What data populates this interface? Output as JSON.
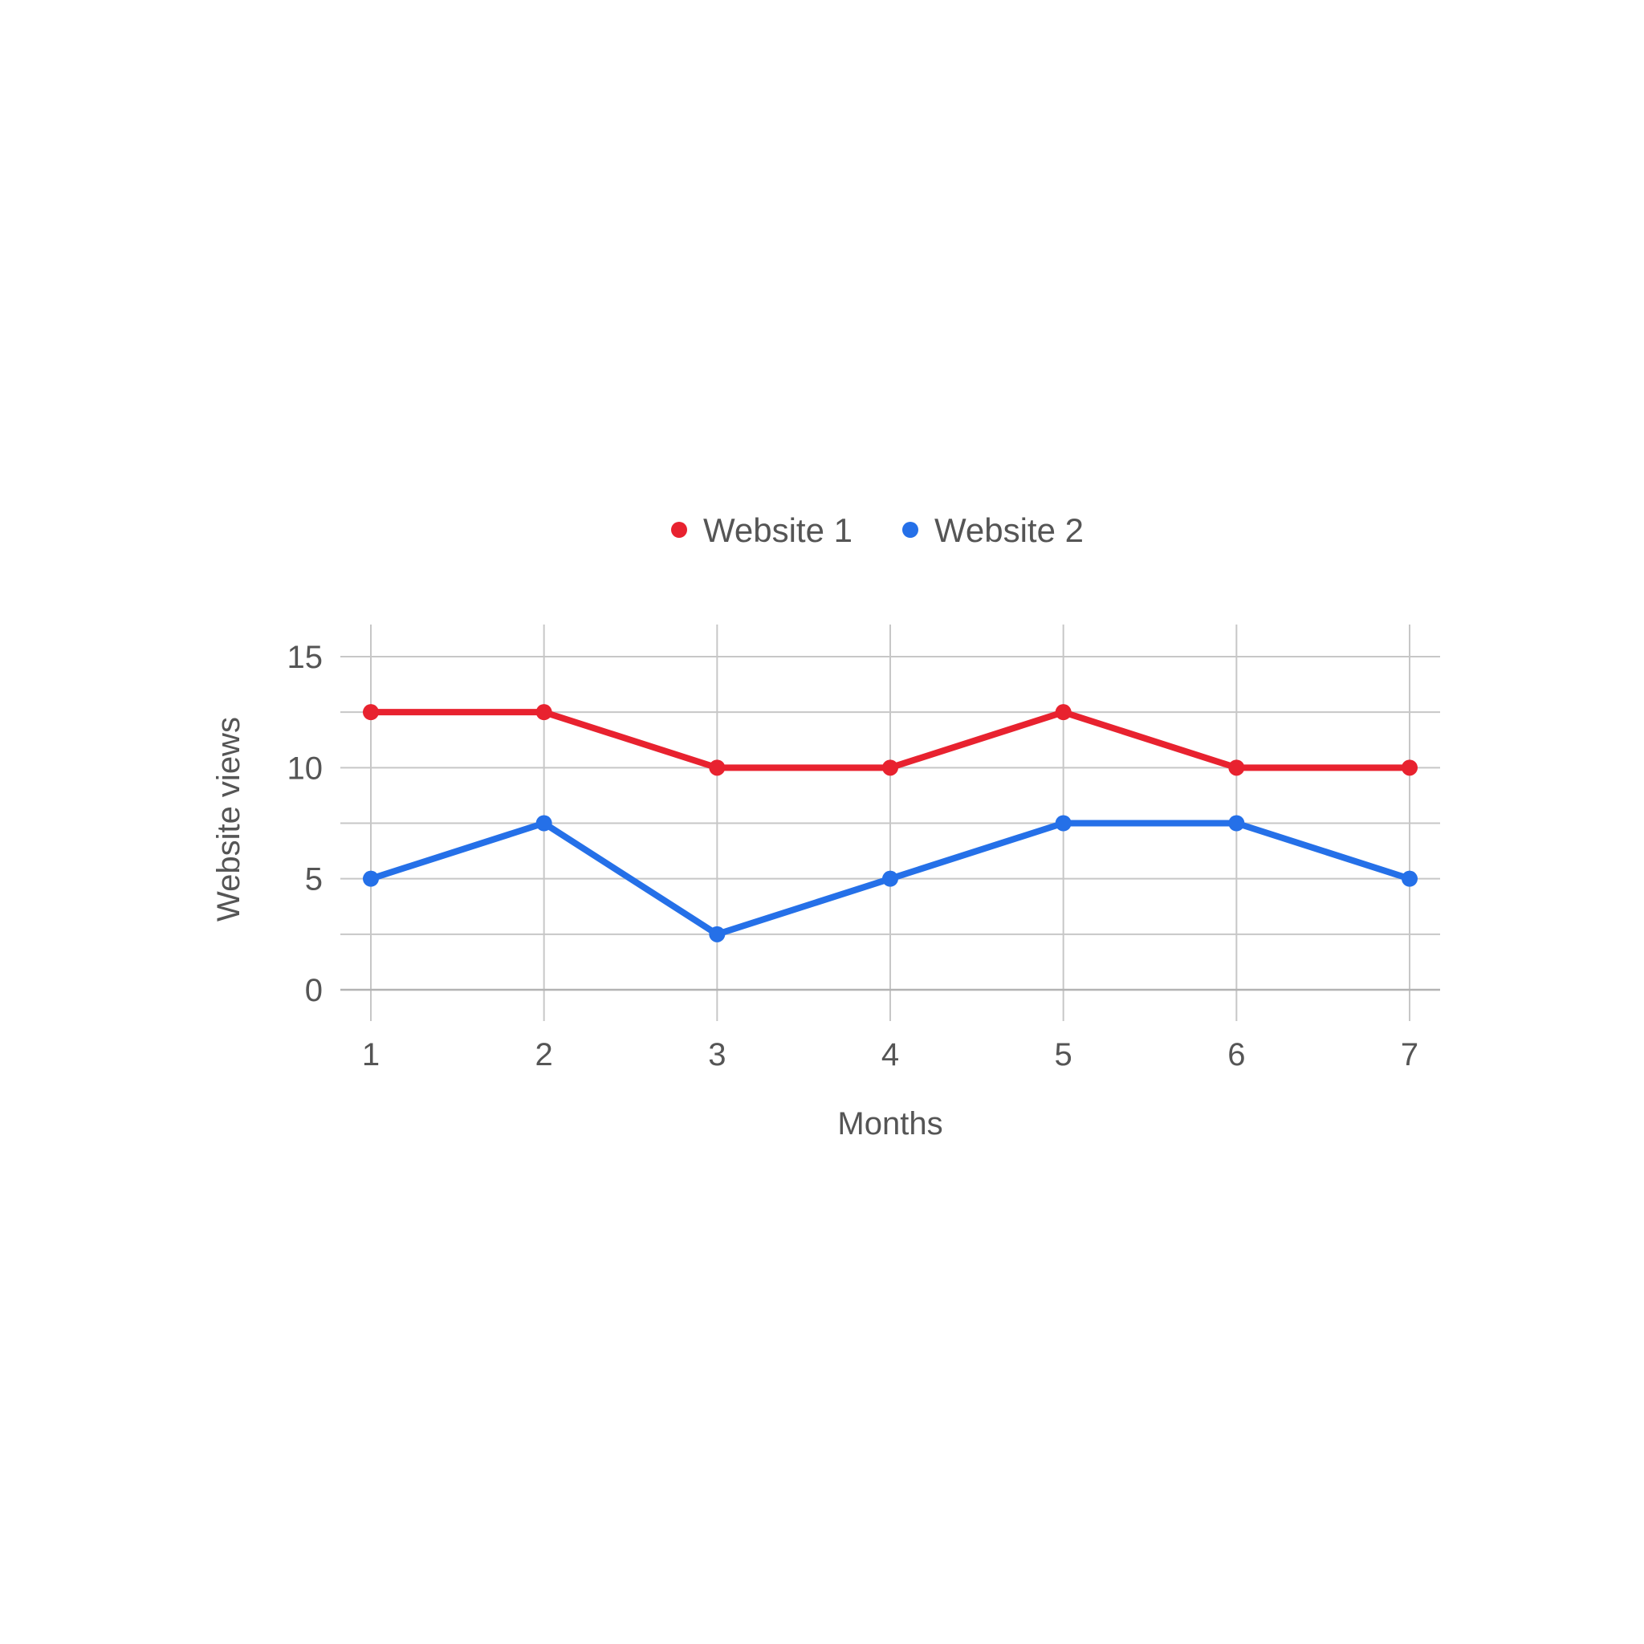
{
  "chart_data": {
    "type": "line",
    "title": "",
    "xlabel": "Months",
    "ylabel": "Website views",
    "x": [
      1,
      2,
      3,
      4,
      5,
      6,
      7
    ],
    "x_tick_labels": [
      "1",
      "2",
      "3",
      "4",
      "5",
      "6",
      "7"
    ],
    "y_tick_values": [
      0,
      5,
      10,
      15
    ],
    "y_tick_labels": [
      "0",
      "5",
      "10",
      "15"
    ],
    "ylim": [
      0,
      15
    ],
    "grid": true,
    "legend_position": "top-center",
    "series": [
      {
        "name": "Website 1",
        "color": "#e8222f",
        "values": [
          12.5,
          12.5,
          10,
          10,
          12.5,
          10,
          10
        ]
      },
      {
        "name": "Website 2",
        "color": "#2570e8",
        "values": [
          5,
          7.5,
          2.5,
          5,
          7.5,
          7.5,
          5
        ]
      }
    ]
  }
}
